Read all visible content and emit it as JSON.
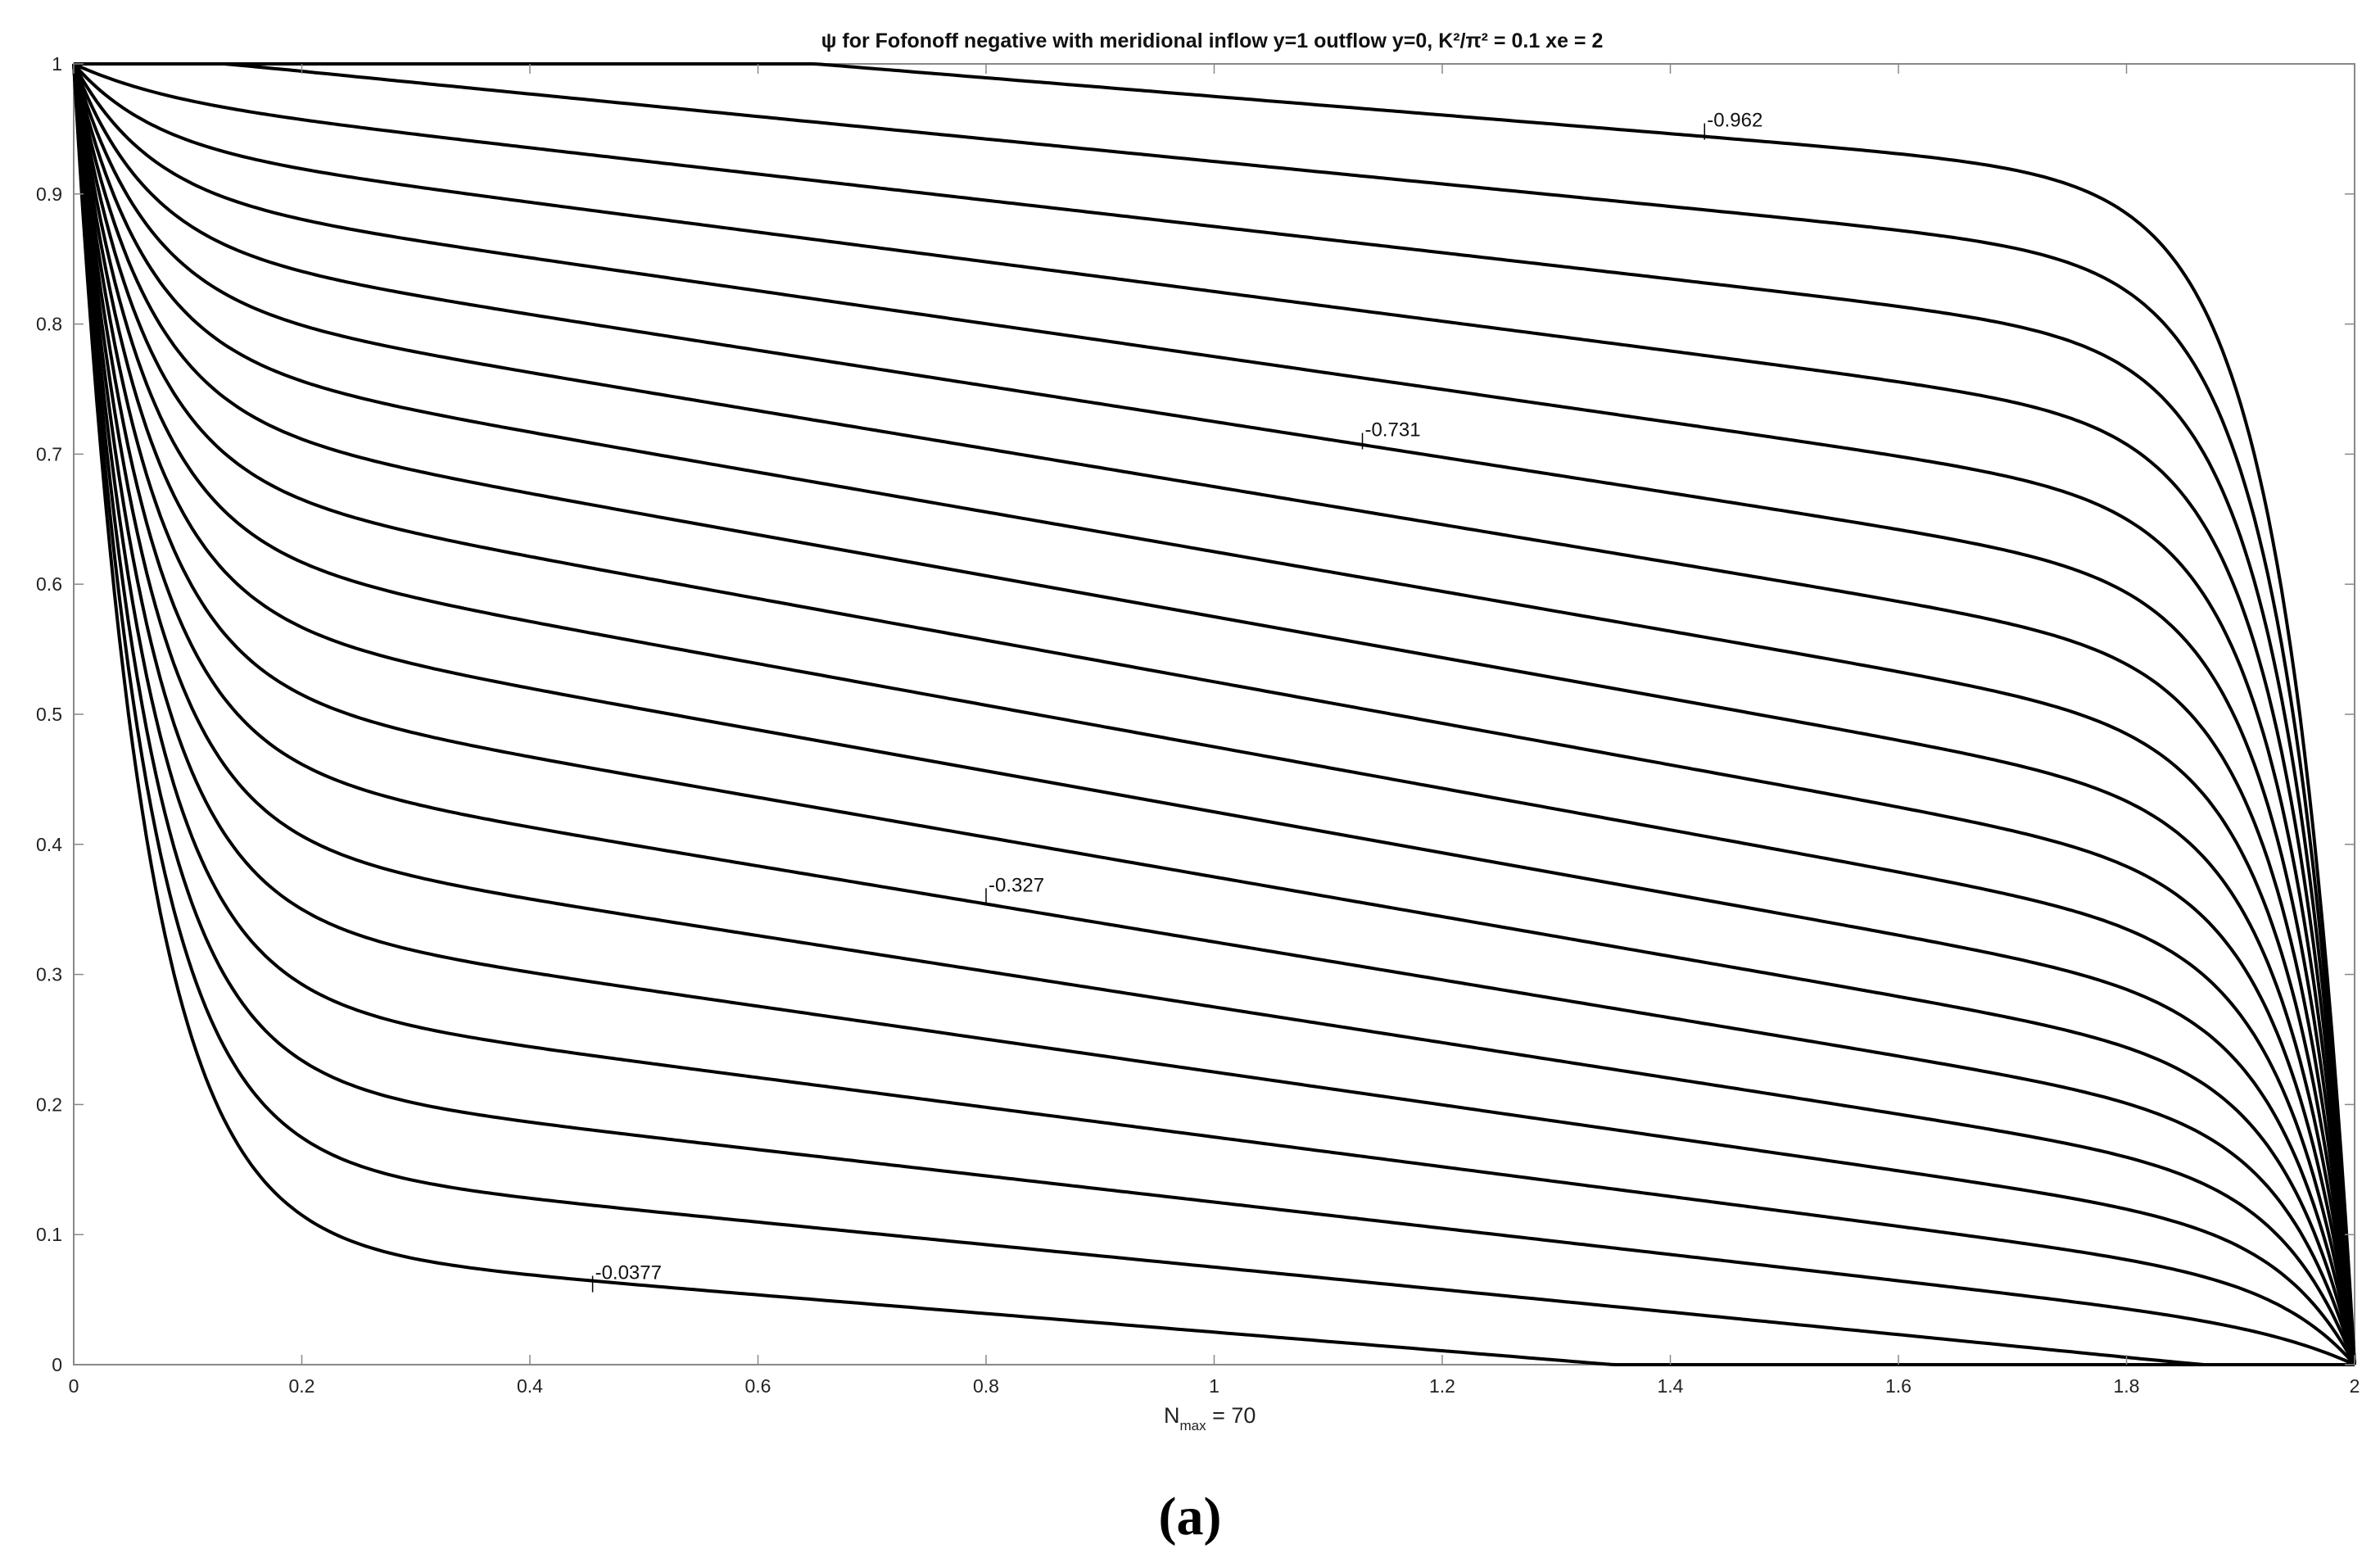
{
  "chart_data": {
    "type": "contour",
    "title": "ψ for Fofonoff negative with meridional inflow y=1  outflow  y=0, K²/π² = 0.1 xe = 2",
    "xlabel": "N_max = 70",
    "xlabel_main": "N",
    "xlabel_sub": "max",
    "xlabel_rest": " = 70",
    "ylabel": "",
    "xlim": [
      0,
      2
    ],
    "ylim": [
      0,
      1
    ],
    "x_ticks": [
      "0",
      "0.2",
      "0.4",
      "0.6",
      "0.8",
      "1",
      "1.2",
      "1.4",
      "1.6",
      "1.8",
      "2"
    ],
    "y_ticks": [
      "0",
      "0.1",
      "0.2",
      "0.3",
      "0.4",
      "0.5",
      "0.6",
      "0.7",
      "0.8",
      "0.9",
      "1"
    ],
    "grid": false,
    "line_color": "#000000",
    "contour_count": 20,
    "contour_labels": [
      {
        "text": "-0.962",
        "x": 1.43,
        "y": 0.948
      },
      {
        "text": "-0.731",
        "x": 1.13,
        "y": 0.71
      },
      {
        "text": "-0.327",
        "x": 0.8,
        "y": 0.36
      },
      {
        "text": "-0.0377",
        "x": 0.455,
        "y": 0.062
      }
    ]
  },
  "panel_label": "(a)"
}
